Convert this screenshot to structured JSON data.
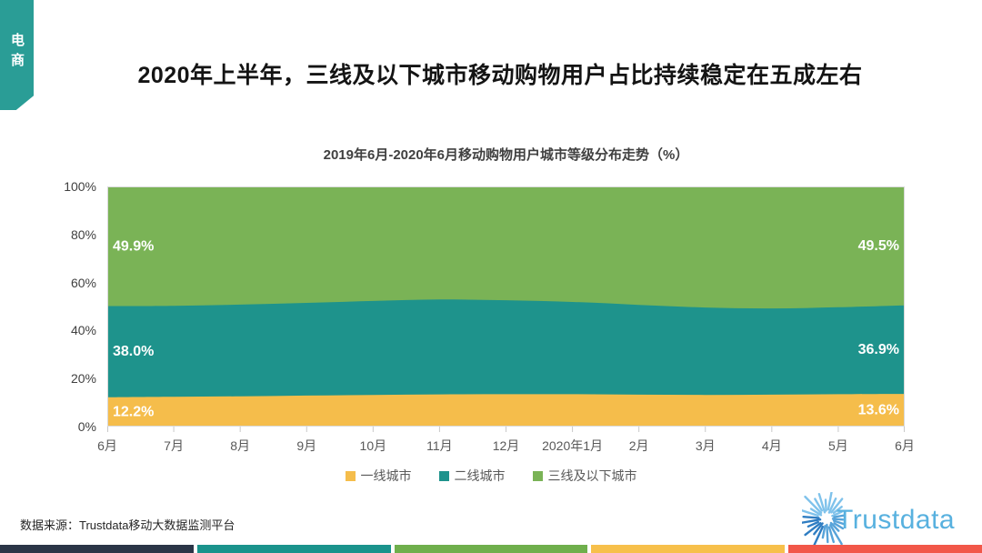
{
  "page": {
    "tab_label": "电商",
    "title": "2020年上半年，三线及以下城市移动购物用户占比持续稳定在五成左右",
    "source": "数据来源：Trustdata移动大数据监测平台",
    "logo_text": "Trustdata"
  },
  "chart_data": {
    "type": "area",
    "stacked": true,
    "title": "2019年6月-2020年6月移动购物用户城市等级分布走势（%）",
    "categories": [
      "6月",
      "7月",
      "8月",
      "9月",
      "10月",
      "11月",
      "12月",
      "2020年1月",
      "2月",
      "3月",
      "4月",
      "5月",
      "6月"
    ],
    "series": [
      {
        "name": "一线城市",
        "color": "#F5BD4B",
        "values": [
          12.2,
          12.4,
          12.6,
          12.9,
          13.2,
          13.4,
          13.5,
          13.5,
          13.3,
          13.2,
          13.3,
          13.5,
          13.6
        ]
      },
      {
        "name": "二线城市",
        "color": "#1E938C",
        "values": [
          38.0,
          37.9,
          38.2,
          38.6,
          39.1,
          39.5,
          39.1,
          38.4,
          37.4,
          36.4,
          35.9,
          36.2,
          36.9
        ]
      },
      {
        "name": "三线及以下城市",
        "color": "#7AB356",
        "values": [
          49.9,
          49.7,
          49.2,
          48.5,
          47.7,
          47.1,
          47.4,
          48.1,
          49.3,
          50.4,
          50.8,
          50.3,
          49.5
        ]
      }
    ],
    "value_labels": {
      "left": [
        {
          "series": "一线城市",
          "value": "12.2%"
        },
        {
          "series": "二线城市",
          "value": "38.0%"
        },
        {
          "series": "三线及以下城市",
          "value": "49.9%"
        }
      ],
      "right": [
        {
          "series": "一线城市",
          "value": "13.6%"
        },
        {
          "series": "二线城市",
          "value": "36.9%"
        },
        {
          "series": "三线及以下城市",
          "value": "49.5%"
        }
      ]
    },
    "y_ticks": [
      "0%",
      "20%",
      "40%",
      "60%",
      "80%",
      "100%"
    ],
    "ylim": [
      0,
      100
    ],
    "grid_color": "#D9D9D9",
    "legend_position": "bottom"
  },
  "footer_strip_colors": [
    "#2B3547",
    "#1A938C",
    "#6FAF4C",
    "#F7C04B",
    "#F25749"
  ]
}
